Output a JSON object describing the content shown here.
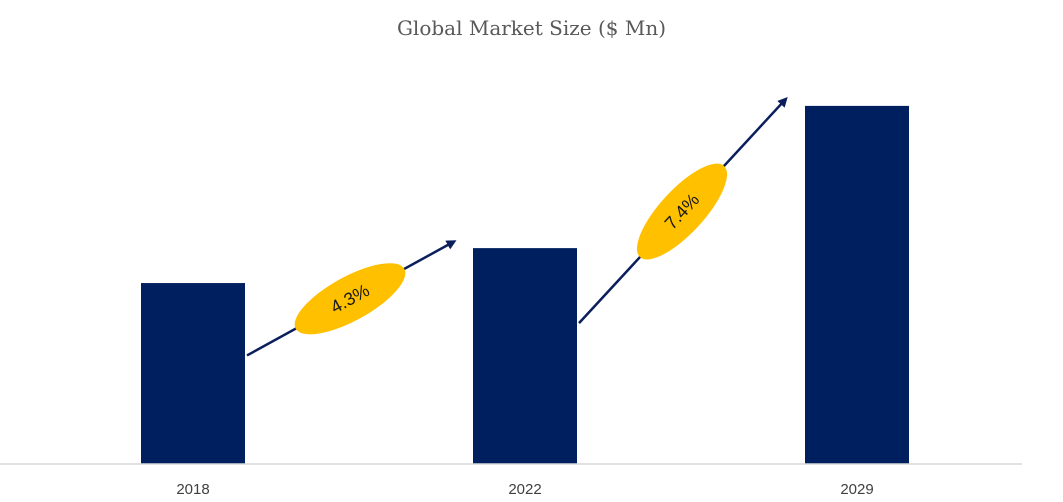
{
  "chart_data": {
    "type": "bar",
    "title": "Global Market Size ($ Mn)",
    "categories": [
      "2018",
      "2022",
      "2029"
    ],
    "values": [
      100,
      119.3,
      197.9
    ],
    "ylim": [
      0,
      210
    ],
    "xlabel": "",
    "ylabel": "",
    "grid": false,
    "legend": "none",
    "bar_color": "#001f5f",
    "annotations": [
      {
        "text": "4.3%",
        "from": "2018",
        "to": "2022",
        "color": "#ffc000"
      },
      {
        "text": "7.4%",
        "from": "2022",
        "to": "2029",
        "color": "#ffc000"
      }
    ],
    "arrow_color": "#0b1f5c"
  }
}
